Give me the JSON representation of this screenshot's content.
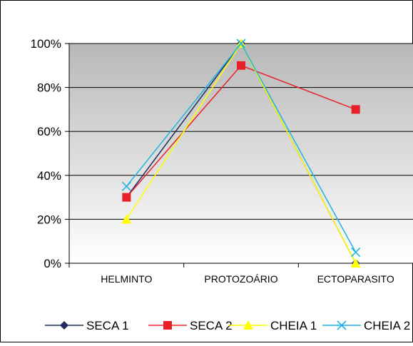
{
  "chart_data": {
    "type": "line",
    "categories": [
      "HELMINTO",
      "PROTOZOÁRIO",
      "ECTOPARASITO"
    ],
    "y_ticks": [
      "0%",
      "20%",
      "40%",
      "60%",
      "80%",
      "100%"
    ],
    "ylim": [
      0,
      100
    ],
    "grid": true,
    "legend_position": "bottom",
    "plot_background": [
      "#b8b8b8",
      "#ffffff"
    ],
    "series": [
      {
        "name": "SECA 1",
        "values": [
          30,
          100,
          0
        ],
        "color": "#1f2d5c",
        "marker": "diamond"
      },
      {
        "name": "SECA 2",
        "values": [
          30,
          90,
          70
        ],
        "color": "#e8202a",
        "marker": "square"
      },
      {
        "name": "CHEIA 1",
        "values": [
          20,
          100,
          0
        ],
        "color": "#ffff00",
        "marker": "triangle"
      },
      {
        "name": "CHEIA 2",
        "values": [
          35,
          100,
          5
        ],
        "color": "#1fb4e0",
        "marker": "x"
      }
    ]
  }
}
